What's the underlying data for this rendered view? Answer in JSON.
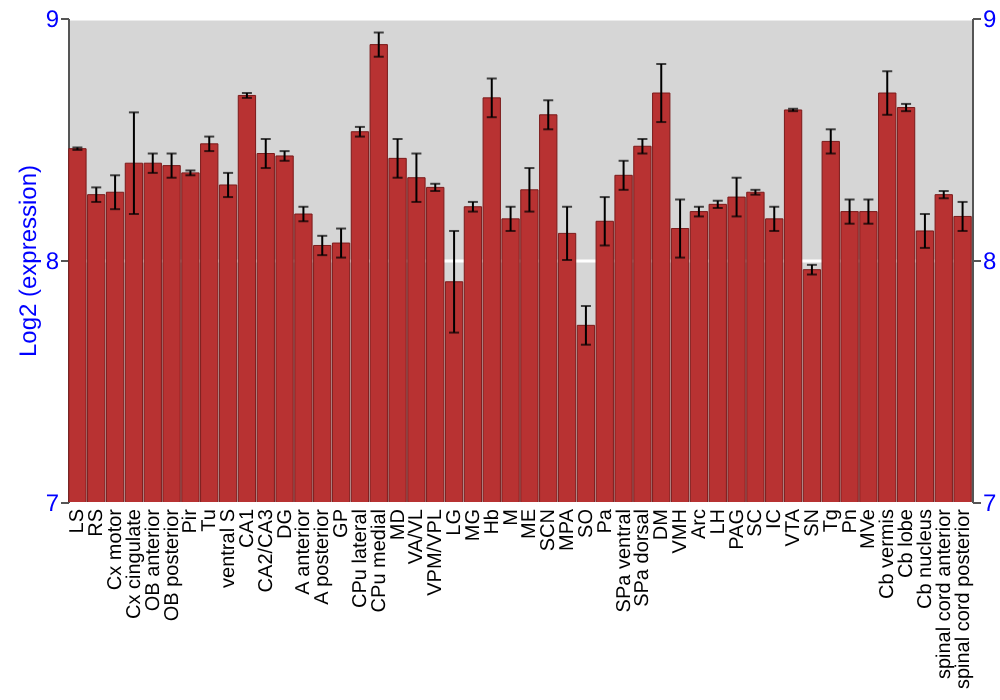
{
  "chart_data": {
    "type": "bar",
    "ylabel": "Log2 (expression)",
    "categories": [
      "LS",
      "RS",
      "Cx motor",
      "Cx cingulate",
      "OB anterior",
      "OB posterior",
      "Pir",
      "Tu",
      "ventral S",
      "CA1",
      "CA2/CA3",
      "DG",
      "A anterior",
      "A posterior",
      "GP",
      "CPu lateral",
      "CPu medial",
      "MD",
      "VA/VL",
      "VPM/VPL",
      "LG",
      "MG",
      "Hb",
      "M",
      "ME",
      "SCN",
      "MPA",
      "SO",
      "Pa",
      "SPa ventral",
      "SPa dorsal",
      "DM",
      "VMH",
      "Arc",
      "LH",
      "PAG",
      "SC",
      "IC",
      "VTA",
      "SN",
      "Tg",
      "Pn",
      "MVe",
      "Cb vermis",
      "Cb lobe",
      "Cb nucleus",
      "spinal cord anterior",
      "spinal cord posterior"
    ],
    "values": [
      8.46,
      8.27,
      8.28,
      8.4,
      8.4,
      8.39,
      8.36,
      8.48,
      8.31,
      8.68,
      8.44,
      8.43,
      8.19,
      8.06,
      8.07,
      8.53,
      8.89,
      8.42,
      8.34,
      8.3,
      7.91,
      8.22,
      8.67,
      8.17,
      8.29,
      8.6,
      8.11,
      7.73,
      8.16,
      8.35,
      8.47,
      8.69,
      8.13,
      8.2,
      8.23,
      8.26,
      8.28,
      8.17,
      8.62,
      7.96,
      8.49,
      8.2,
      8.2,
      8.69,
      8.63,
      8.12,
      8.27,
      8.18
    ],
    "errors": [
      0.005,
      0.03,
      0.07,
      0.21,
      0.04,
      0.05,
      0.01,
      0.03,
      0.05,
      0.01,
      0.06,
      0.02,
      0.03,
      0.04,
      0.06,
      0.02,
      0.05,
      0.08,
      0.1,
      0.015,
      0.21,
      0.02,
      0.08,
      0.05,
      0.09,
      0.06,
      0.11,
      0.08,
      0.1,
      0.06,
      0.03,
      0.12,
      0.12,
      0.02,
      0.015,
      0.08,
      0.01,
      0.05,
      0.005,
      0.02,
      0.05,
      0.05,
      0.05,
      0.09,
      0.015,
      0.07,
      0.015,
      0.06
    ],
    "color": "#b83232",
    "ylim": [
      7,
      9
    ],
    "yticks": [
      7,
      8,
      9
    ],
    "y2lim": [
      7,
      9
    ],
    "y2ticks": [
      7,
      8,
      9
    ],
    "grid": "y"
  }
}
